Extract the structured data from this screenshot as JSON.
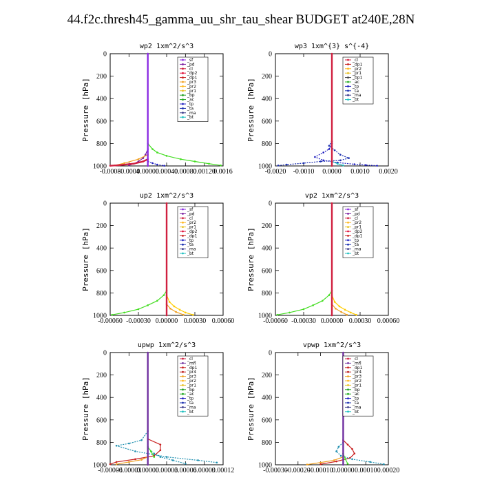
{
  "title": "44.f2c.thresh45_gamma_uu_shr_tau_shear  BUDGET at240E,28N",
  "colors": {
    "_sf": "#8a2be2",
    "_pd": "#7a1fa0",
    "_cl": "#d02040",
    "_dp2": "#e0103a",
    "_dp1": "#c81e1e",
    "_pr3": "#f0a020",
    "_pr2": "#ffb820",
    "_pr1": "#e8c020",
    "_bp": "#20a020",
    "_ac": "#22aa22",
    "_tp": "#2020c0",
    "_ta": "#1a2fb0",
    "_ma": "#3a3a8a",
    "_bt": "#20c0c0",
    "_mfl": "#7030a0",
    "_pr4": "#c02020",
    "green": "#44dd22",
    "teal": "#2090b0",
    "yellow": "#ffcc00"
  },
  "chart_data": [
    {
      "type": "line",
      "title": "wp2   1xm^2/s^3",
      "ylabel": "Pressure [hPa]",
      "xlim": [
        -0.0008,
        0.0016
      ],
      "ylim": [
        1000,
        0
      ],
      "xtick_labels": [
        "-0.0008",
        "-0.0004",
        "0.00000",
        "0.00040",
        "0.00080",
        "0.00120",
        "0.0016"
      ],
      "ytick_labels": [
        "0",
        "200",
        "400",
        "600",
        "800",
        "1000"
      ],
      "xticks": [
        -0.0008,
        -0.0004,
        0.0,
        0.0004,
        0.0008,
        0.0012,
        0.0016
      ],
      "yticks": [
        0,
        200,
        400,
        600,
        800,
        1000
      ],
      "legend": [
        "_sf",
        "_pd",
        "_cl",
        "_dp2",
        "_dp1",
        "_pr3",
        "_pr2",
        "_pr1",
        "_bp",
        "_ac",
        "_tp",
        "_ta",
        "_ma",
        "_bt"
      ],
      "series": [
        {
          "name": "_bp",
          "color": "green",
          "x": [
            0,
            0,
            0.0001,
            0.0002,
            0.0004,
            0.0007,
            0.001,
            0.0013,
            0.00155
          ],
          "y": [
            0,
            800,
            850,
            880,
            910,
            940,
            960,
            980,
            995
          ]
        },
        {
          "name": "_pd",
          "color": "_pd",
          "x": [
            0,
            0,
            -5e-05,
            -0.0001,
            -0.0002,
            -0.0003,
            -0.0004
          ],
          "y": [
            0,
            850,
            900,
            930,
            960,
            980,
            995
          ]
        },
        {
          "name": "_pr3",
          "color": "_pr3",
          "x": [
            0,
            -0.0002,
            -0.0005,
            -0.0007
          ],
          "y": [
            900,
            940,
            975,
            995
          ]
        },
        {
          "name": "_cl",
          "color": "_cl",
          "x": [
            0,
            -0.0001,
            -0.0003,
            -0.0006,
            -0.0008
          ],
          "y": [
            940,
            960,
            980,
            993,
            998
          ]
        },
        {
          "name": "_tp",
          "color": "_tp",
          "x": [
            0,
            0.0001,
            0.0002,
            0.00035
          ],
          "y": [
            960,
            975,
            988,
            998
          ]
        },
        {
          "name": "_sf",
          "color": "_sf",
          "x": [
            0,
            0
          ],
          "y": [
            0,
            1000
          ]
        }
      ]
    },
    {
      "type": "line",
      "title": "wp3   1xm^{3} s^{-4}",
      "ylabel": "Pressure [hPa]",
      "xlim": [
        -0.002,
        0.002
      ],
      "ylim": [
        1000,
        0
      ],
      "xtick_labels": [
        "-0.0020",
        "-0.0010",
        "0.0000",
        "0.0010",
        "0.0020"
      ],
      "ytick_labels": [
        "0",
        "200",
        "400",
        "600",
        "800",
        "1000"
      ],
      "xticks": [
        -0.002,
        -0.001,
        0,
        0.001,
        0.002
      ],
      "yticks": [
        0,
        200,
        400,
        600,
        800,
        1000
      ],
      "legend": [
        "_cl",
        "_dp1",
        "_pr2",
        "_pr1",
        "_bp1",
        "_ac",
        "_tp",
        "_ta",
        "_ma",
        "_bt"
      ],
      "series": [
        {
          "name": "_ta",
          "color": "_ta",
          "x": [
            0,
            -0.0001,
            0.0001,
            0.0003,
            0.0006,
            0.0003,
            -0.0004,
            -0.001,
            -0.0016,
            -0.0019
          ],
          "y": [
            780,
            820,
            860,
            900,
            930,
            950,
            960,
            975,
            988,
            996
          ]
        },
        {
          "name": "_tp",
          "color": "_tp",
          "x": [
            0,
            -0.0001,
            -0.0003,
            -0.0006,
            -0.0003,
            0.0002,
            0.0008,
            0.0012,
            0.0016
          ],
          "y": [
            800,
            850,
            880,
            920,
            950,
            970,
            985,
            992,
            998
          ]
        },
        {
          "name": "_bt",
          "color": "_bt",
          "x": [
            0,
            0.0002,
            0.0004
          ],
          "y": [
            960,
            980,
            995
          ]
        },
        {
          "name": "_cl",
          "color": "_cl",
          "x": [
            0,
            0
          ],
          "y": [
            0,
            1000
          ]
        }
      ]
    },
    {
      "type": "line",
      "title": "up2   1xm^2/s^3",
      "ylabel": "Pressure [hPa]",
      "xlim": [
        -0.0006,
        0.0006
      ],
      "ylim": [
        1000,
        0
      ],
      "xtick_labels": [
        "-0.00060",
        "-0.00030",
        "0.00000",
        "0.00030",
        "0.00060"
      ],
      "ytick_labels": [
        "0",
        "200",
        "400",
        "600",
        "800",
        "1000"
      ],
      "xticks": [
        -0.0006,
        -0.0003,
        0,
        0.0003,
        0.0006
      ],
      "yticks": [
        0,
        200,
        400,
        600,
        800,
        1000
      ],
      "legend": [
        "_sf",
        "_pd",
        "_cl",
        "_pr2",
        "_pr1",
        "_dp2",
        "_dp1",
        "_tp",
        "_ta",
        "_ma",
        "_bt"
      ],
      "series": [
        {
          "name": "_dp2",
          "color": "green",
          "x": [
            0,
            -3e-05,
            -0.0001,
            -0.0002,
            -0.0003,
            -0.00045,
            -0.00058
          ],
          "y": [
            780,
            820,
            870,
            910,
            945,
            975,
            995
          ]
        },
        {
          "name": "_pr2",
          "color": "yellow",
          "x": [
            0,
            3e-05,
            8e-05,
            0.00014,
            0.0002,
            0.00028
          ],
          "y": [
            820,
            880,
            920,
            950,
            975,
            995
          ]
        },
        {
          "name": "_pr1",
          "color": "_pr3",
          "x": [
            0,
            4e-05,
            0.0001,
            0.00018
          ],
          "y": [
            900,
            940,
            970,
            995
          ]
        },
        {
          "name": "_cl",
          "color": "_cl",
          "x": [
            0,
            0
          ],
          "y": [
            0,
            1000
          ]
        }
      ]
    },
    {
      "type": "line",
      "title": "vp2   1xm^2/s^3",
      "ylabel": "Pressure [hPa]",
      "xlim": [
        -0.0006,
        0.0006
      ],
      "ylim": [
        1000,
        0
      ],
      "xtick_labels": [
        "-0.00060",
        "-0.00030",
        "0.00000",
        "0.00030",
        "0.00060"
      ],
      "ytick_labels": [
        "0",
        "200",
        "400",
        "600",
        "800",
        "1000"
      ],
      "xticks": [
        -0.0006,
        -0.0003,
        0,
        0.0003,
        0.0006
      ],
      "yticks": [
        0,
        200,
        400,
        600,
        800,
        1000
      ],
      "legend": [
        "_sf",
        "_pd",
        "_cl",
        "_pr2",
        "_pr1",
        "_dp2",
        "_dp1",
        "_tp",
        "_ta",
        "_ma",
        "_bt"
      ],
      "series": [
        {
          "name": "_dp2",
          "color": "green",
          "x": [
            0,
            -3e-05,
            -0.0001,
            -0.0002,
            -0.0003,
            -0.00045,
            -0.00058
          ],
          "y": [
            780,
            820,
            870,
            910,
            945,
            975,
            995
          ]
        },
        {
          "name": "_pr2",
          "color": "yellow",
          "x": [
            0,
            3e-05,
            8e-05,
            0.00014,
            0.0002,
            0.00026
          ],
          "y": [
            820,
            880,
            920,
            950,
            975,
            995
          ]
        },
        {
          "name": "_pr1",
          "color": "_pr3",
          "x": [
            0,
            4e-05,
            0.0001,
            0.00016
          ],
          "y": [
            900,
            940,
            970,
            995
          ]
        },
        {
          "name": "_cl",
          "color": "_cl",
          "x": [
            0,
            0
          ],
          "y": [
            0,
            1000
          ]
        }
      ]
    },
    {
      "type": "line",
      "title": "upwp   1xm^2/s^3",
      "ylabel": "Pressure [hPa]",
      "xlim": [
        -6e-05,
        0.00012
      ],
      "ylim": [
        1000,
        0
      ],
      "xtick_labels": [
        "-0.00006",
        "-0.00003",
        "0.00000",
        "0.00003",
        "0.00006",
        "0.00009",
        "0.00012"
      ],
      "ytick_labels": [
        "0",
        "200",
        "400",
        "600",
        "800",
        "1000"
      ],
      "xticks": [
        -6e-05,
        -3e-05,
        0,
        3e-05,
        6e-05,
        9e-05,
        0.00012
      ],
      "yticks": [
        0,
        200,
        400,
        600,
        800,
        1000
      ],
      "legend": [
        "_cl",
        "_mfl",
        "_dp1",
        "_pr4",
        "_pr3",
        "_pr2",
        "_pr1",
        "_bp",
        "_ac",
        "_tp",
        "_ta",
        "_ma",
        "_bt"
      ],
      "series": [
        {
          "name": "_ta",
          "color": "teal",
          "x": [
            0,
            -1e-05,
            -3e-05,
            -5e-05,
            -2e-05,
            3e-05,
            8e-05,
            0.00011
          ],
          "y": [
            700,
            780,
            810,
            830,
            880,
            930,
            960,
            980
          ]
        },
        {
          "name": "_ma",
          "color": "teal",
          "x": [
            0,
            1e-05,
            2e-05,
            4e-05,
            6e-05
          ],
          "y": [
            850,
            900,
            930,
            960,
            990
          ]
        },
        {
          "name": "_dp1",
          "color": "_dp1",
          "x": [
            0,
            2e-05,
            2e-05,
            1e-05,
            -2e-05,
            -5e-05,
            -6e-05
          ],
          "y": [
            770,
            820,
            870,
            920,
            950,
            975,
            995
          ]
        },
        {
          "name": "_pr3",
          "color": "_pr3",
          "x": [
            0,
            -1e-05,
            -3e-05,
            -5e-05
          ],
          "y": [
            930,
            955,
            975,
            995
          ]
        },
        {
          "name": "_bp",
          "color": "green",
          "x": [
            0,
            5e-06,
            1e-05
          ],
          "y": [
            840,
            880,
            930
          ]
        },
        {
          "name": "_mfl",
          "color": "_mfl",
          "x": [
            0,
            0
          ],
          "y": [
            0,
            1000
          ]
        }
      ]
    },
    {
      "type": "line",
      "title": "vpwp   1xm^2/s^3",
      "ylabel": "Pressure [hPa]",
      "xlim": [
        -0.0003,
        0.0002
      ],
      "ylim": [
        1000,
        0
      ],
      "xtick_labels": [
        "-0.00030",
        "-0.00020",
        "-0.00010",
        "0.00000",
        "0.00010",
        "0.00020"
      ],
      "ytick_labels": [
        "0",
        "200",
        "400",
        "600",
        "800",
        "1000"
      ],
      "xticks": [
        -0.0003,
        -0.0002,
        -0.0001,
        0,
        0.0001,
        0.0002
      ],
      "yticks": [
        0,
        200,
        400,
        600,
        800,
        1000
      ],
      "legend": [
        "_cl",
        "_mfl",
        "_dp1",
        "_pr4",
        "_pr3",
        "_pr2",
        "_pr1",
        "_bp",
        "_ac",
        "_tp",
        "_ta",
        "_ma",
        "_bt"
      ],
      "series": [
        {
          "name": "_dp1",
          "color": "_dp1",
          "x": [
            0,
            2e-05,
            4e-05,
            5e-05,
            3e-05,
            -3e-05,
            -0.0001
          ],
          "y": [
            780,
            820,
            860,
            900,
            940,
            970,
            995
          ]
        },
        {
          "name": "_ta",
          "color": "teal",
          "x": [
            0,
            -2e-05,
            -3e-05,
            -1e-05,
            4e-05,
            0.00012,
            0.00018
          ],
          "y": [
            800,
            840,
            880,
            920,
            950,
            975,
            995
          ]
        },
        {
          "name": "_pr3",
          "color": "_pr3",
          "x": [
            0,
            -4e-05,
            -0.0001,
            -0.00016
          ],
          "y": [
            930,
            960,
            980,
            998
          ]
        },
        {
          "name": "_bp",
          "color": "green",
          "x": [
            0,
            1e-05,
            2e-05
          ],
          "y": [
            900,
            950,
            990
          ]
        },
        {
          "name": "_mfl",
          "color": "_mfl",
          "x": [
            0,
            0
          ],
          "y": [
            0,
            1000
          ]
        }
      ]
    }
  ]
}
